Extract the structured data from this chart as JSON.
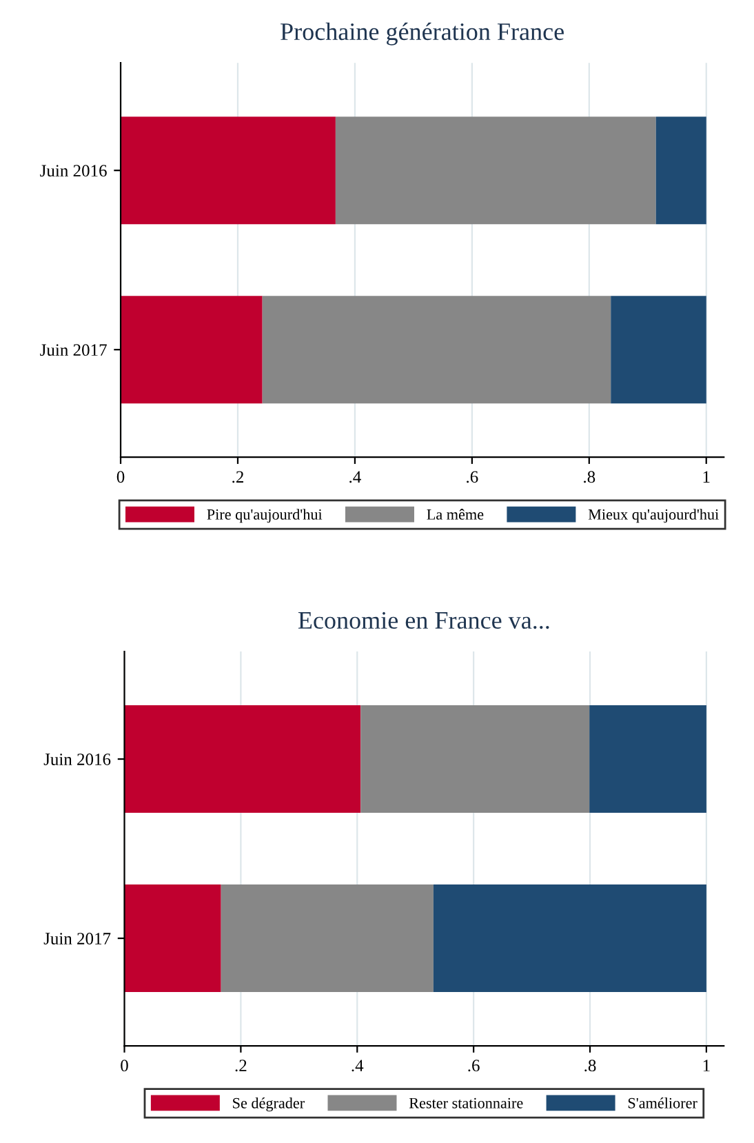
{
  "chart_data": [
    {
      "type": "bar",
      "orientation": "horizontal",
      "stacked": true,
      "title": "Prochaine génération France",
      "categories": [
        "Juin 2016",
        "Juin 2017"
      ],
      "series": [
        {
          "name": "Pire qu'aujourd'hui",
          "color": "#c0002f",
          "values": [
            0.367,
            0.242
          ]
        },
        {
          "name": "La même",
          "color": "#878787",
          "values": [
            0.547,
            0.595
          ]
        },
        {
          "name": "Mieux qu'aujourd'hui",
          "color": "#1f4b73",
          "values": [
            0.086,
            0.163
          ]
        }
      ],
      "xlim": [
        0,
        1.03
      ],
      "xticks": [
        0,
        {
          "value": 0.2,
          "label": ".2"
        },
        {
          "value": 0.4,
          "label": ".4"
        },
        {
          "value": 0.6,
          "label": ".6"
        },
        {
          "value": 0.8,
          "label": ".8"
        },
        1
      ],
      "grid": "x",
      "legend": "bottom"
    },
    {
      "type": "bar",
      "orientation": "horizontal",
      "stacked": true,
      "title": "Economie en France va...",
      "categories": [
        "Juin 2016",
        "Juin 2017"
      ],
      "series": [
        {
          "name": "Se dégrader",
          "color": "#c0002f",
          "values": [
            0.406,
            0.166
          ]
        },
        {
          "name": "Rester stationnaire",
          "color": "#878787",
          "values": [
            0.393,
            0.365
          ]
        },
        {
          "name": "S'améliorer",
          "color": "#1f4b73",
          "values": [
            0.201,
            0.469
          ]
        }
      ],
      "xlim": [
        0,
        1.03
      ],
      "xticks": [
        0,
        {
          "value": 0.2,
          "label": ".2"
        },
        {
          "value": 0.4,
          "label": ".4"
        },
        {
          "value": 0.6,
          "label": ".6"
        },
        {
          "value": 0.8,
          "label": ".8"
        },
        1
      ],
      "grid": "x",
      "legend": "bottom"
    }
  ]
}
